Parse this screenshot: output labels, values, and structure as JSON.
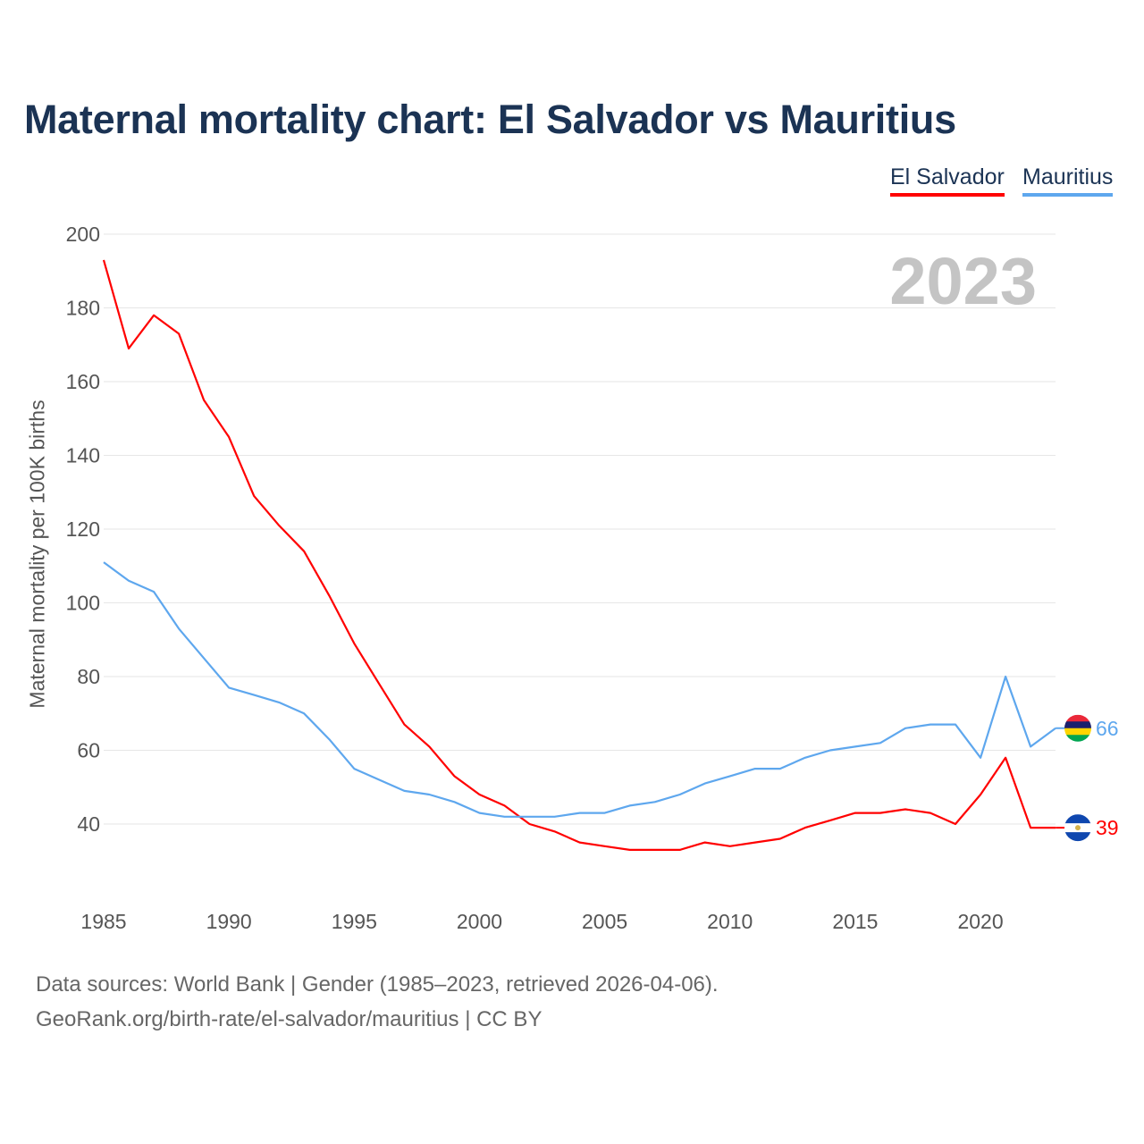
{
  "chart_data": {
    "type": "line",
    "title": "Maternal mortality chart: El Salvador vs Mauritius",
    "xlabel": "",
    "ylabel": "Maternal mortality per 100K births",
    "xlim": [
      1985,
      2023
    ],
    "ylim": [
      20,
      200
    ],
    "yticks": [
      40,
      60,
      80,
      100,
      120,
      140,
      160,
      180,
      200
    ],
    "xticks": [
      1985,
      1990,
      1995,
      2000,
      2005,
      2010,
      2015,
      2020
    ],
    "grid": true,
    "legend_position": "top-right",
    "year_watermark": "2023",
    "x": [
      1985,
      1986,
      1987,
      1988,
      1989,
      1990,
      1991,
      1992,
      1993,
      1994,
      1995,
      1996,
      1997,
      1998,
      1999,
      2000,
      2001,
      2002,
      2003,
      2004,
      2005,
      2006,
      2007,
      2008,
      2009,
      2010,
      2011,
      2012,
      2013,
      2014,
      2015,
      2016,
      2017,
      2018,
      2019,
      2020,
      2021,
      2022,
      2023
    ],
    "series": [
      {
        "name": "El Salvador",
        "color": "#ff0000",
        "end_label": "39",
        "values": [
          193,
          169,
          178,
          173,
          155,
          145,
          129,
          121,
          114,
          102,
          89,
          78,
          67,
          61,
          53,
          48,
          45,
          40,
          38,
          35,
          34,
          33,
          33,
          33,
          35,
          34,
          35,
          36,
          39,
          41,
          43,
          43,
          44,
          43,
          40,
          48,
          58,
          39,
          39
        ]
      },
      {
        "name": "Mauritius",
        "color": "#5ea7ee",
        "end_label": "66",
        "values": [
          111,
          106,
          103,
          93,
          85,
          77,
          75,
          73,
          70,
          63,
          55,
          52,
          49,
          48,
          46,
          43,
          42,
          42,
          42,
          43,
          43,
          45,
          46,
          48,
          51,
          53,
          55,
          55,
          58,
          60,
          61,
          62,
          66,
          67,
          67,
          58,
          80,
          61,
          66
        ]
      }
    ]
  },
  "footer": {
    "line1": "Data sources: World Bank | Gender (1985–2023, retrieved 2026-04-06).",
    "line2": "GeoRank.org/birth-rate/el-salvador/mauritius | CC BY"
  }
}
